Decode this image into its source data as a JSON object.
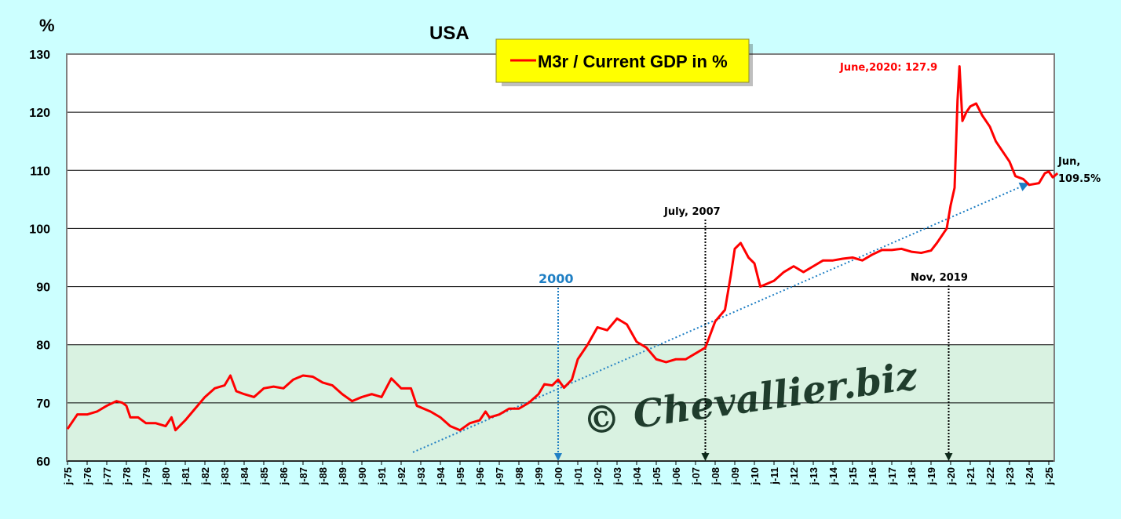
{
  "chart_data": {
    "type": "line",
    "title": "USA",
    "ylabel": "%",
    "xlabel": "",
    "ylim": [
      60,
      130
    ],
    "xlim": [
      1975,
      2025.75
    ],
    "yticks": [
      60,
      70,
      80,
      90,
      100,
      110,
      120,
      130
    ],
    "xtick_labels": [
      "j-75",
      "j-76",
      "j-77",
      "j-78",
      "j-79",
      "j-80",
      "j-81",
      "j-82",
      "j-83",
      "j-84",
      "j-85",
      "j-86",
      "j-87",
      "j-88",
      "j-89",
      "j-90",
      "j-91",
      "j-92",
      "j-93",
      "j-94",
      "j-95",
      "j-96",
      "j-97",
      "j-98",
      "j-99",
      "j-00",
      "j-01",
      "j-02",
      "j-03",
      "j-04",
      "j-05",
      "j-06",
      "j-07",
      "j-08",
      "j-09",
      "j-10",
      "j-11",
      "j-12",
      "j-13",
      "j-14",
      "j-15",
      "j-16",
      "j-17",
      "j-18",
      "j-19",
      "j-20",
      "j-21",
      "j-22",
      "j-23",
      "j-24",
      "j-25"
    ],
    "grid": true,
    "legend": {
      "position": "top-center",
      "entries": [
        "M3r / Current GDP in %"
      ]
    },
    "shaded_band": {
      "from": 60,
      "to": 80,
      "color": "#d9f2e1"
    },
    "series": [
      {
        "name": "M3r / Current GDP in %",
        "color": "#ff0000",
        "x": [
          1975,
          1975.5,
          1976,
          1976.5,
          1977,
          1977.5,
          1977.8,
          1978,
          1978.2,
          1978.6,
          1979,
          1979.5,
          1980,
          1980.3,
          1980.5,
          1981,
          1981.5,
          1982,
          1982.5,
          1983,
          1983.3,
          1983.6,
          1984,
          1984.5,
          1985,
          1985.5,
          1986,
          1986.5,
          1987,
          1987.5,
          1988,
          1988.5,
          1989,
          1989.5,
          1990,
          1990.5,
          1991,
          1991.5,
          1992,
          1992.5,
          1992.8,
          1993.5,
          1994,
          1994.5,
          1995,
          1995.5,
          1996,
          1996.3,
          1996.5,
          1997,
          1997.5,
          1998,
          1998.5,
          1999,
          1999.3,
          1999.7,
          2000,
          2000.3,
          2000.7,
          2001,
          2001.5,
          2002,
          2002.5,
          2003,
          2003.5,
          2004,
          2004.5,
          2005,
          2005.5,
          2006,
          2006.5,
          2007,
          2007.5,
          2008,
          2008.5,
          2008.8,
          2009,
          2009.3,
          2009.7,
          2010,
          2010.3,
          2011,
          2011.5,
          2012,
          2012.5,
          2013,
          2013.5,
          2014,
          2014.5,
          2015,
          2015.5,
          2016,
          2016.5,
          2017,
          2017.5,
          2018,
          2018.5,
          2019,
          2019.3,
          2019.8,
          2020,
          2020.2,
          2020.35,
          2020.45,
          2020.6,
          2020.8,
          2021,
          2021.3,
          2021.6,
          2022,
          2022.3,
          2022.7,
          2023,
          2023.3,
          2023.7,
          2024,
          2024.5,
          2024.8,
          2025,
          2025.2,
          2025.45
        ],
        "y": [
          65.5,
          68,
          68,
          68.5,
          69.5,
          70.3,
          70,
          69.5,
          67.5,
          67.5,
          66.5,
          66.5,
          66,
          67.5,
          65.3,
          67,
          69,
          71,
          72.5,
          73,
          74.7,
          72,
          71.5,
          71,
          72.5,
          72.8,
          72.5,
          74,
          74.7,
          74.5,
          73.5,
          73,
          71.5,
          70.3,
          71,
          71.5,
          71,
          74.2,
          72.5,
          72.5,
          69.5,
          68.5,
          67.5,
          66,
          65.3,
          66.5,
          67,
          68.5,
          67.5,
          68,
          69,
          69,
          70,
          71.5,
          73.2,
          73,
          74,
          72.6,
          74,
          77.5,
          80,
          83,
          82.5,
          84.5,
          83.5,
          80.5,
          79.5,
          77.5,
          77,
          77.5,
          77.5,
          78.5,
          79.5,
          84,
          86,
          92,
          96.5,
          97.5,
          95,
          94,
          90,
          91,
          92.5,
          93.5,
          92.5,
          93.5,
          94.5,
          94.5,
          94.8,
          95,
          94.5,
          95.5,
          96.3,
          96.3,
          96.5,
          96,
          95.8,
          96.2,
          97.5,
          100,
          104,
          107,
          122,
          127.9,
          118.5,
          120,
          121,
          121.5,
          119.5,
          117.5,
          115,
          113,
          111.5,
          109,
          108.5,
          107.5,
          107.8,
          109.5,
          109.8,
          108.8,
          109.5
        ]
      }
    ],
    "trendline": {
      "x": [
        1992.6,
        2024
      ],
      "y": [
        61.5,
        107.8
      ],
      "color": "#1f7fc4"
    },
    "annotations": [
      {
        "text": "2000",
        "x": 2000.0,
        "color": "#1f7fc4"
      },
      {
        "text": "July, 2007",
        "x": 2007.5,
        "color": "#000000"
      },
      {
        "text": "Nov, 2019",
        "x": 2019.9,
        "color": "#000000"
      },
      {
        "text": "June,2020: 127.9",
        "color": "#ff0000"
      },
      {
        "text_line1": "Jun,",
        "text_line2": "109.5%",
        "color": "#000000"
      }
    ],
    "watermark": "© Chevallier.biz"
  }
}
